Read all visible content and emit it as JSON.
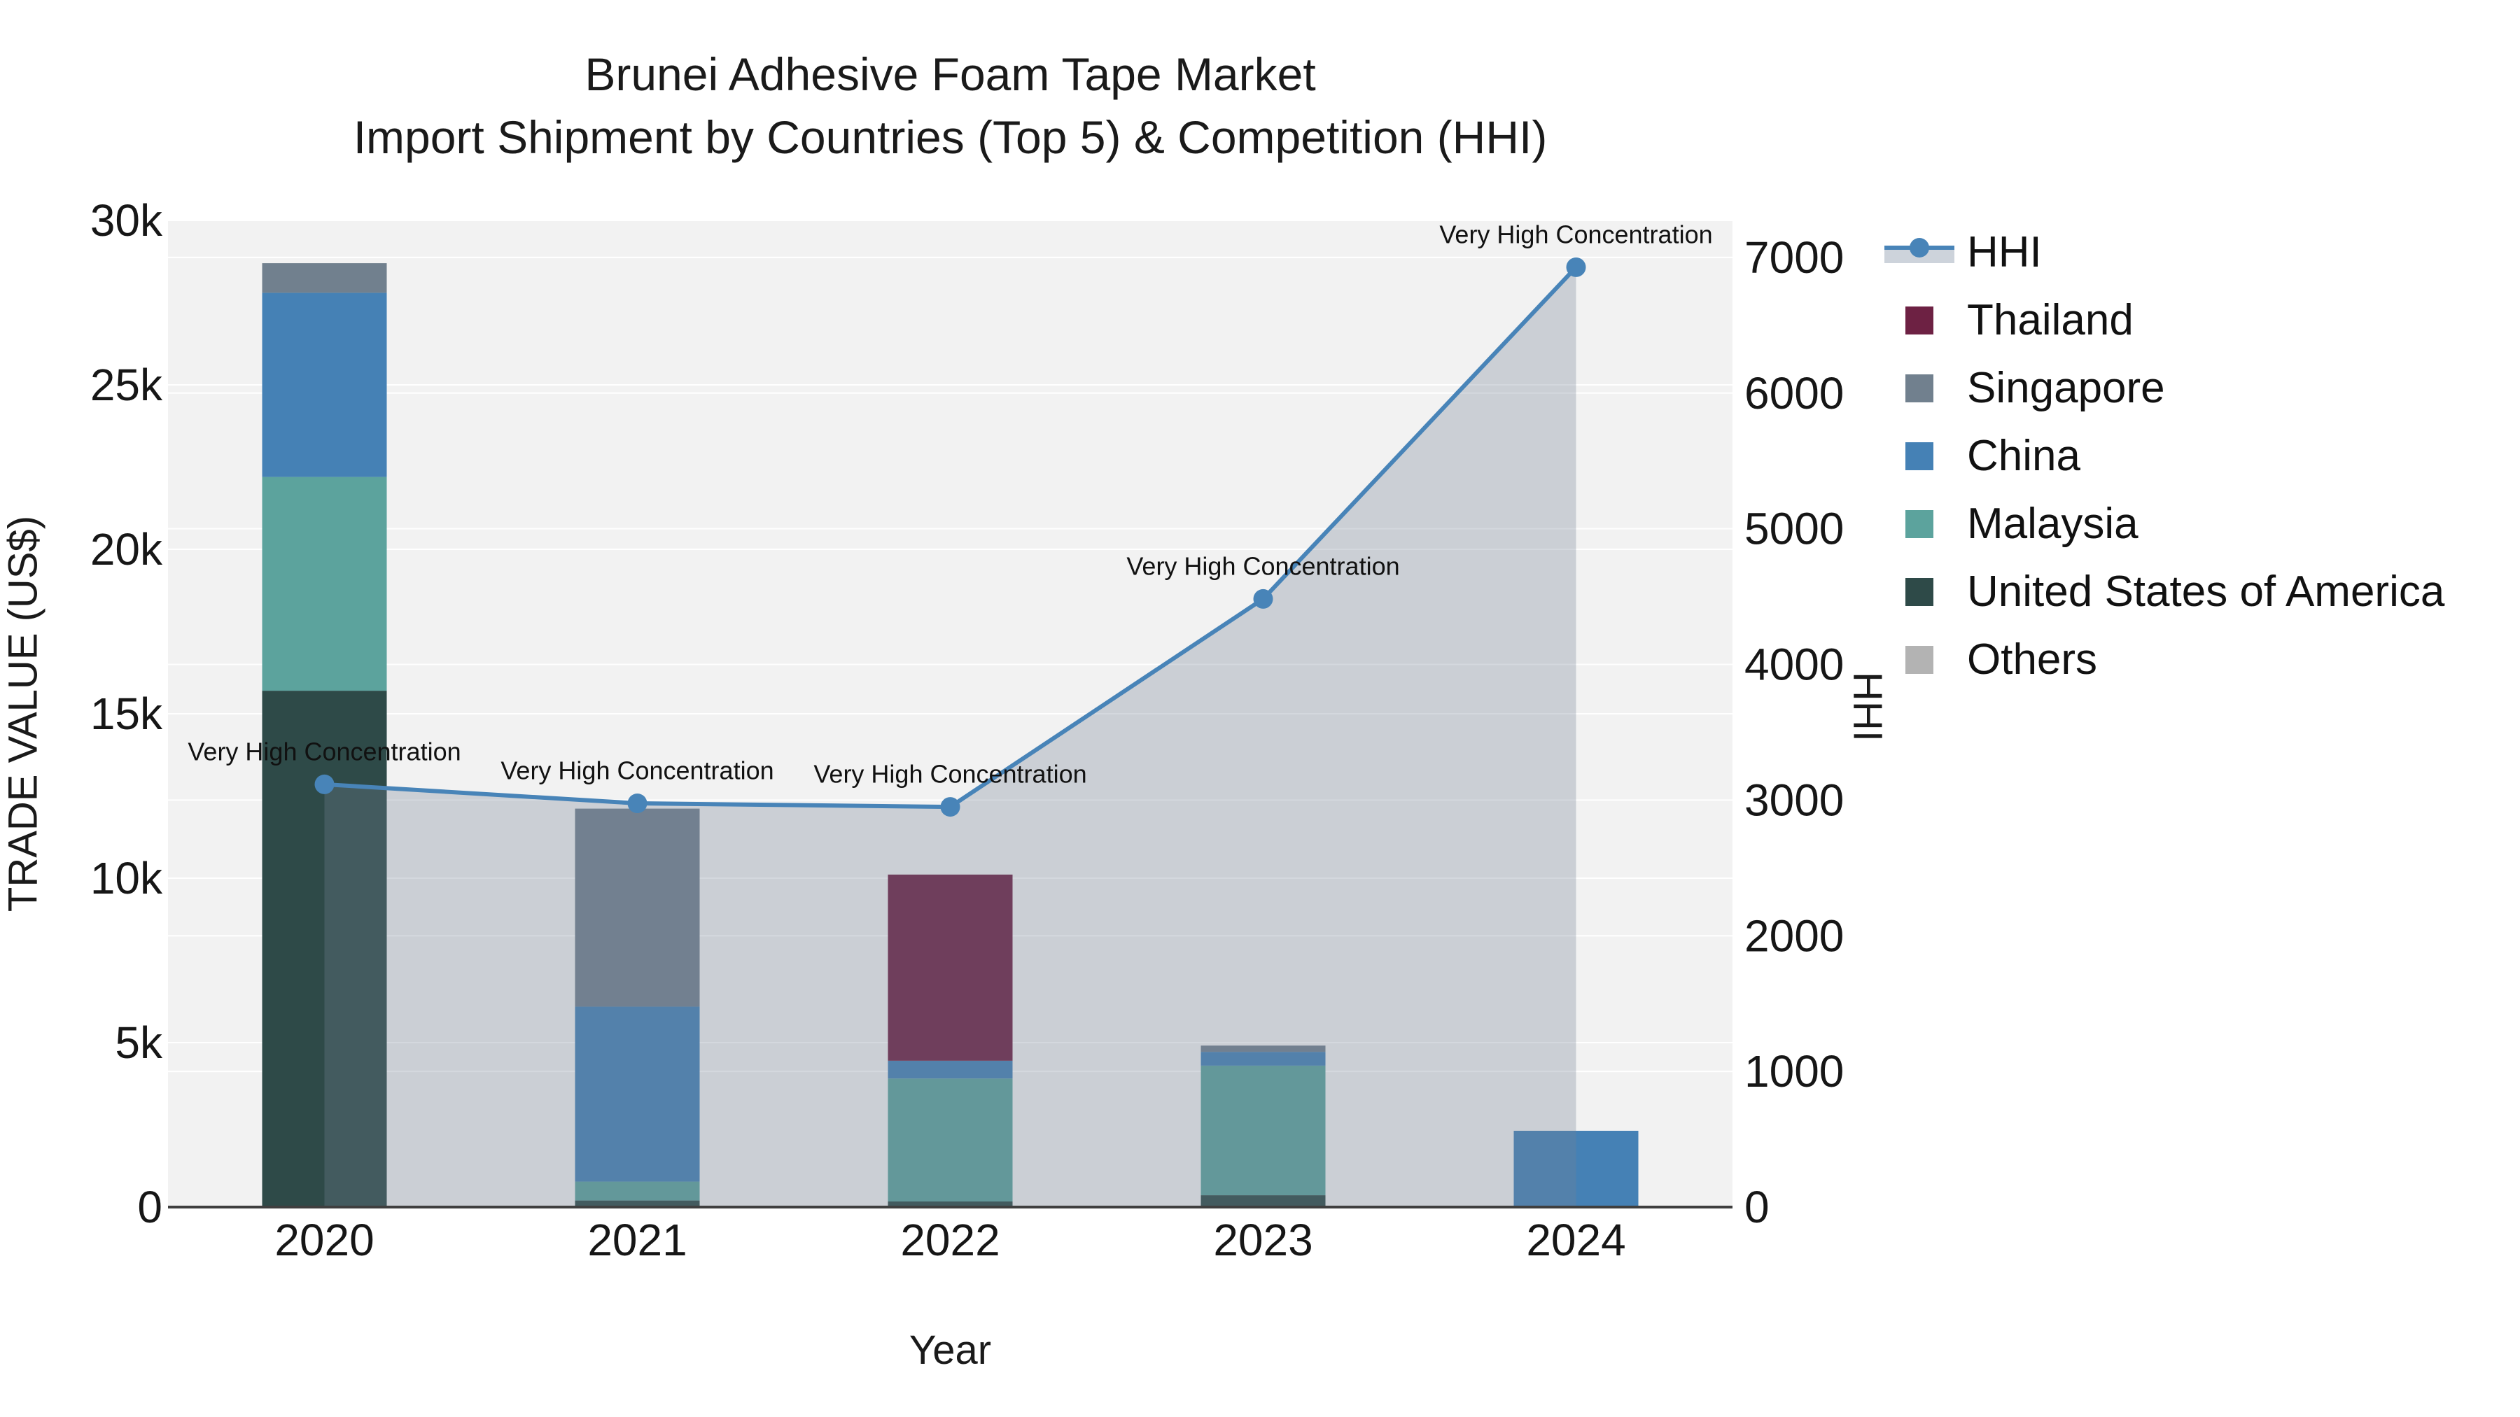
{
  "title": {
    "line1": "Brunei Adhesive Foam Tape Market",
    "line2": "Import Shipment by Countries (Top 5) & Competition (HHI)"
  },
  "axes": {
    "x": {
      "title": "Year",
      "categories": [
        "2020",
        "2021",
        "2022",
        "2023",
        "2024"
      ]
    },
    "y_left": {
      "title": "TRADE VALUE (US$)",
      "tick_labels": [
        "0",
        "5k",
        "10k",
        "15k",
        "20k",
        "25k",
        "30k"
      ],
      "tick_values": [
        0,
        5000,
        10000,
        15000,
        20000,
        25000,
        30000
      ]
    },
    "y_right": {
      "title": "HHI",
      "tick_labels": [
        "0",
        "1000",
        "2000",
        "3000",
        "4000",
        "5000",
        "6000",
        "7000"
      ],
      "tick_values": [
        0,
        1000,
        2000,
        3000,
        4000,
        5000,
        6000,
        7000
      ]
    }
  },
  "legend": [
    {
      "label": "HHI",
      "type": "line",
      "color": "#4884B8",
      "band": "#CDD3DB"
    },
    {
      "label": "Thailand",
      "type": "swatch",
      "color": "#6D2143"
    },
    {
      "label": "Singapore",
      "type": "swatch",
      "color": "#71808E"
    },
    {
      "label": "China",
      "type": "swatch",
      "color": "#4581B5"
    },
    {
      "label": "Malaysia",
      "type": "swatch",
      "color": "#5CA39D"
    },
    {
      "label": "United States of America",
      "type": "swatch",
      "color": "#2E4A48"
    },
    {
      "label": "Others",
      "type": "swatch",
      "color": "#B3B3B3"
    }
  ],
  "chart_data": {
    "type": "bar",
    "subtype": "stacked bars (left axis) + line with area fill (right axis)",
    "categories": [
      "2020",
      "2021",
      "2022",
      "2023",
      "2024"
    ],
    "series": [
      {
        "name": "Thailand",
        "color": "#6D2143",
        "values": [
          0,
          0,
          5660,
          0,
          0
        ]
      },
      {
        "name": "Singapore",
        "color": "#71808E",
        "values": [
          900,
          6020,
          0,
          190,
          0
        ]
      },
      {
        "name": "China",
        "color": "#4581B5",
        "values": [
          5600,
          5320,
          540,
          420,
          2320
        ]
      },
      {
        "name": "Malaysia",
        "color": "#5CA39D",
        "values": [
          6500,
          575,
          3740,
          3940,
          0
        ]
      },
      {
        "name": "United States of America",
        "color": "#2E4A48",
        "values": [
          15700,
          200,
          170,
          360,
          0
        ]
      },
      {
        "name": "Others",
        "color": "#B3B3B3",
        "values": [
          0,
          0,
          0,
          0,
          0
        ]
      }
    ],
    "stack_totals": [
      28700,
      12115,
      10110,
      4910,
      2320
    ],
    "line_series": {
      "name": "HHI",
      "axis": "right",
      "color": "#4884B8",
      "area_fill": "rgba(117,129,149,0.31)",
      "values": [
        3116,
        2976,
        2950,
        4483,
        6928
      ]
    },
    "annotations": [
      {
        "x": "2020",
        "text": "Very High Concentration"
      },
      {
        "x": "2021",
        "text": "Very High Concentration"
      },
      {
        "x": "2022",
        "text": "Very High Concentration"
      },
      {
        "x": "2023",
        "text": "Very High Concentration"
      },
      {
        "x": "2024",
        "text": "Very High Concentration"
      }
    ],
    "ylim_left": [
      0,
      30000
    ],
    "ylim_right": [
      0,
      7273
    ],
    "grid": "on",
    "legend_position": "right",
    "plot_background": "#F2F2F2",
    "gridline_color": "#FFFFFF",
    "axisline_color": "#3F3F3F"
  }
}
